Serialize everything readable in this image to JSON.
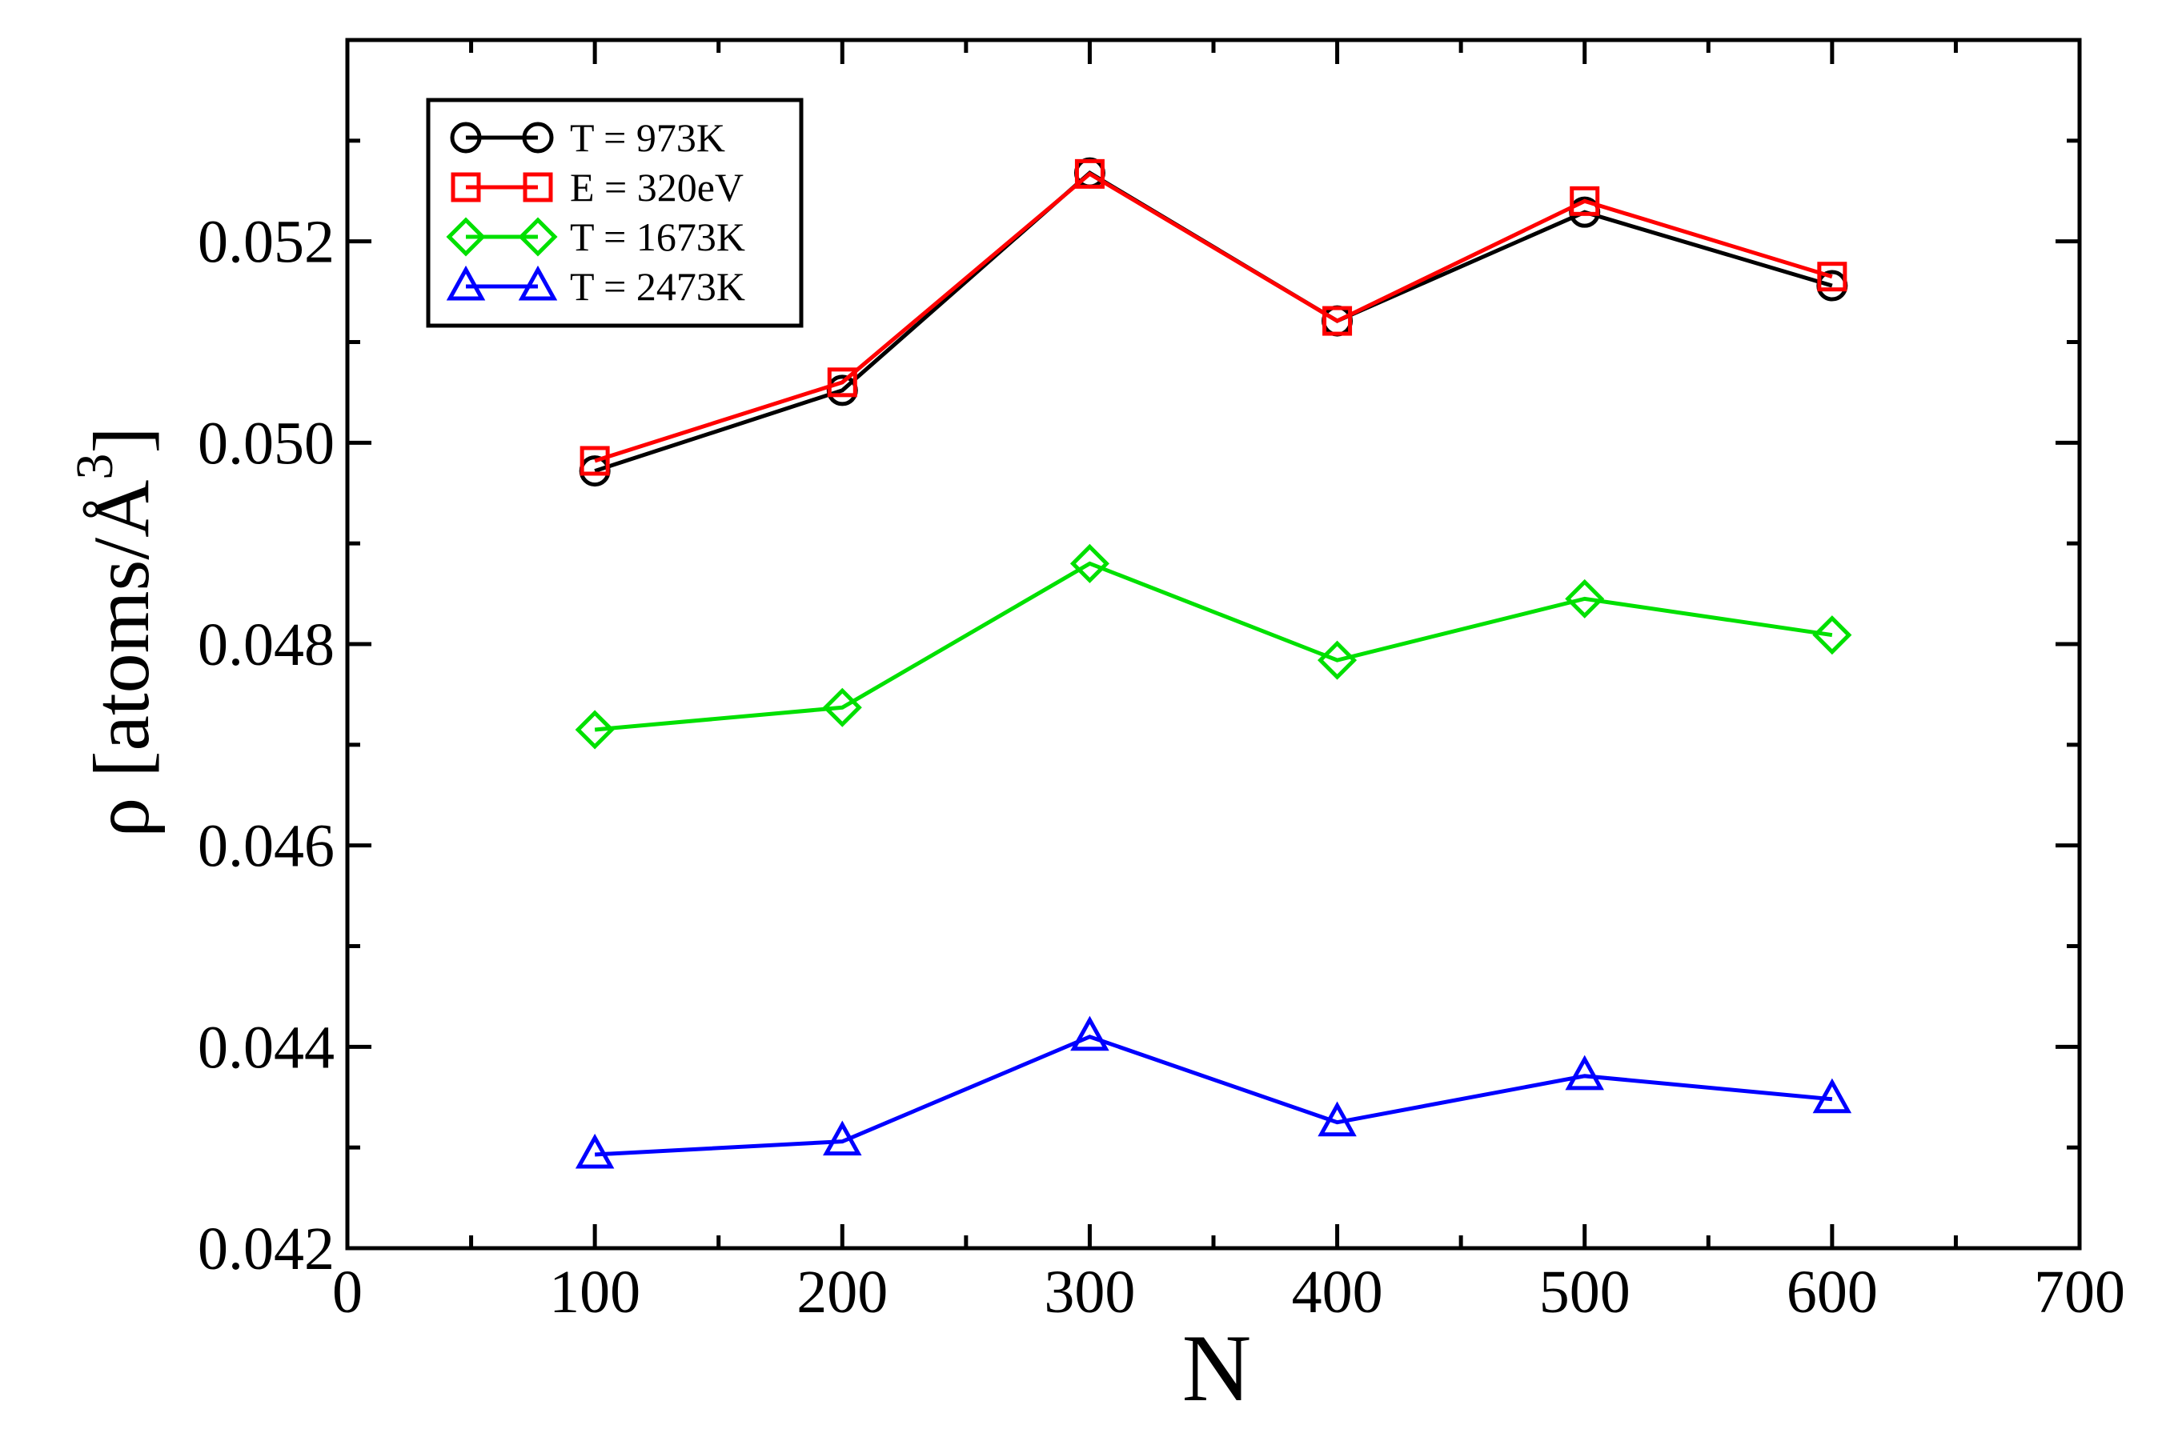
{
  "chart_data": {
    "type": "line",
    "title": "",
    "xlabel": "N",
    "ylabel": "ρ  [atoms/Å",
    "ylabel_superscript": "3",
    "ylabel_close": "]",
    "xlim": [
      0,
      700
    ],
    "ylim": [
      0.042,
      0.054
    ],
    "x_ticks": [
      0,
      100,
      200,
      300,
      400,
      500,
      600,
      700
    ],
    "x_tick_labels": [
      "0",
      "100",
      "200",
      "300",
      "400",
      "500",
      "600",
      "700"
    ],
    "y_ticks": [
      0.042,
      0.044,
      0.046,
      0.048,
      0.05,
      0.052
    ],
    "y_tick_labels": [
      "0.042",
      "0.044",
      "0.046",
      "0.048",
      "0.050",
      "0.052"
    ],
    "grid": false,
    "legend_position": "top-left",
    "x": [
      100,
      200,
      300,
      400,
      500,
      600
    ],
    "series": [
      {
        "name": "T = 973K",
        "color": "#000000",
        "marker": "circle",
        "values": [
          0.04972,
          0.05052,
          0.05268,
          0.05121,
          0.05229,
          0.05156
        ]
      },
      {
        "name": "E = 320eV",
        "color": "#ff0000",
        "marker": "square",
        "values": [
          0.04982,
          0.0506,
          0.05267,
          0.05121,
          0.0524,
          0.05165
        ]
      },
      {
        "name": "T = 1673K",
        "color": "#00e000",
        "marker": "diamond",
        "values": [
          0.04715,
          0.04737,
          0.0488,
          0.04784,
          0.04845,
          0.04809
        ]
      },
      {
        "name": "T = 2473K",
        "color": "#0000ff",
        "marker": "triangle",
        "values": [
          0.04293,
          0.04306,
          0.0441,
          0.04325,
          0.04371,
          0.04348
        ]
      }
    ]
  }
}
